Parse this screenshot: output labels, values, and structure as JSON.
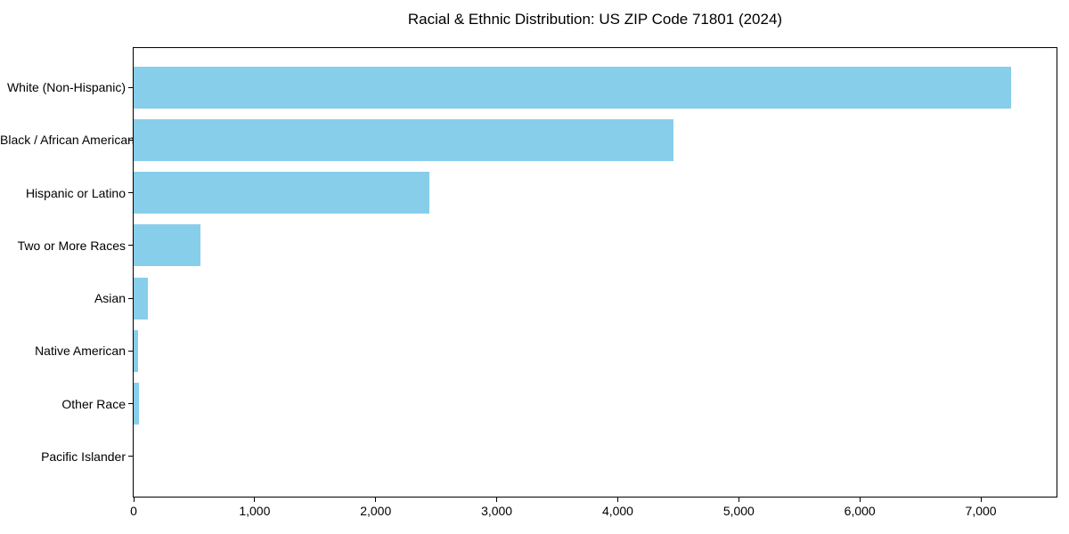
{
  "chart_data": {
    "type": "bar",
    "orientation": "horizontal",
    "title": "Racial & Ethnic Distribution: US ZIP Code 71801 (2024)",
    "categories": [
      "White (Non-Hispanic)",
      "Black / African American",
      "Hispanic or Latino",
      "Two or More Races",
      "Asian",
      "Native American",
      "Other Race",
      "Pacific Islander"
    ],
    "values": [
      7250,
      4460,
      2440,
      550,
      120,
      35,
      45,
      0
    ],
    "xlabel": "",
    "ylabel": "",
    "xlim": [
      0,
      7625
    ],
    "x_ticks": [
      0,
      1000,
      2000,
      3000,
      4000,
      5000,
      6000,
      7000
    ],
    "x_tick_labels": [
      "0",
      "1,000",
      "2,000",
      "3,000",
      "4,000",
      "5,000",
      "6,000",
      "7,000"
    ],
    "bar_color": "#87CEEB",
    "spine_color": "#000000",
    "text_color": "#000000",
    "grid": false,
    "legend": false
  }
}
